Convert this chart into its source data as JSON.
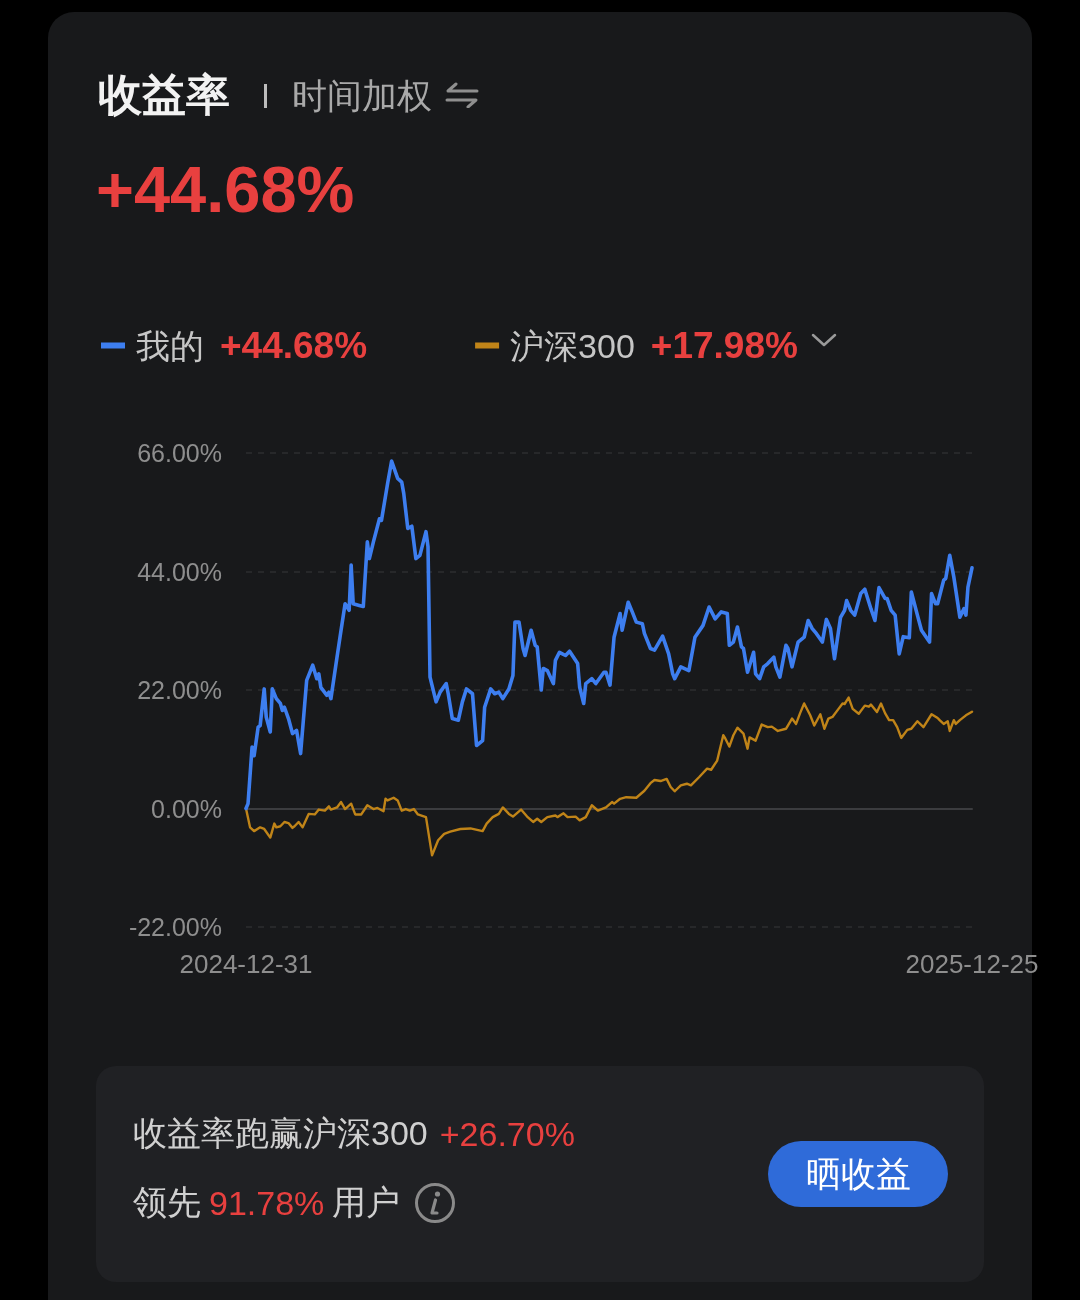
{
  "chart_data": {
    "type": "line",
    "title": "收益率",
    "subtitle": "时间加权",
    "annotations": [
      "+44.68%",
      "+44.68%",
      "+17.98%",
      "收益率跑赢沪深300",
      "+26.70%",
      "领先",
      "91.78%",
      "用户",
      "晒收益"
    ],
    "xlim": [
      "2024-12-31",
      "2025-12-25"
    ],
    "xticks": [
      "2024-12-31",
      "2025-12-25"
    ],
    "ylim": [
      -22,
      66
    ],
    "yticks": [
      {
        "value": -22,
        "label": "-22.00%"
      },
      {
        "value": 0,
        "label": "0.00%"
      },
      {
        "value": 22,
        "label": "22.00%"
      },
      {
        "value": 44,
        "label": "44.00%"
      },
      {
        "value": 66,
        "label": "66.00%"
      }
    ],
    "grid": "y",
    "legend": "top left",
    "marker": "none",
    "line_style": "solid",
    "series": [
      {
        "name": "我的",
        "color": "#3d7ef0",
        "x": [
          "2024-12-31",
          "2025-01-01",
          "2025-01-03",
          "2025-01-04",
          "2025-01-06",
          "2025-01-07",
          "2025-01-09",
          "2025-01-10",
          "2025-01-12",
          "2025-01-13",
          "2025-01-15",
          "2025-01-17",
          "2025-01-18",
          "2025-01-19",
          "2025-01-21",
          "2025-01-23",
          "2025-01-25",
          "2025-01-27",
          "2025-01-30",
          "2025-02-02",
          "2025-02-04",
          "2025-02-05",
          "2025-02-06",
          "2025-02-09",
          "2025-02-10",
          "2025-02-11",
          "2025-02-14",
          "2025-02-16",
          "2025-02-18",
          "2025-02-20",
          "2025-02-21",
          "2025-02-22",
          "2025-02-25",
          "2025-02-27",
          "2025-03-01",
          "2025-03-02",
          "2025-03-04",
          "2025-03-07",
          "2025-03-08",
          "2025-03-11",
          "2025-03-13",
          "2025-03-16",
          "2025-03-18",
          "2025-03-19",
          "2025-03-21",
          "2025-03-23",
          "2025-03-25",
          "2025-03-27",
          "2025-03-30",
          "2025-03-31",
          "2025-04-01",
          "2025-04-04",
          "2025-04-06",
          "2025-04-09",
          "2025-04-10",
          "2025-04-12",
          "2025-04-15",
          "2025-04-17",
          "2025-04-19",
          "2025-04-22",
          "2025-04-24",
          "2025-04-27",
          "2025-04-28",
          "2025-05-01",
          "2025-05-03",
          "2025-05-05",
          "2025-05-07",
          "2025-05-10",
          "2025-05-12",
          "2025-05-13",
          "2025-05-15",
          "2025-05-17",
          "2025-05-18",
          "2025-05-21",
          "2025-05-23",
          "2025-05-24",
          "2025-05-26",
          "2025-05-27",
          "2025-05-29",
          "2025-06-01",
          "2025-06-02",
          "2025-06-04",
          "2025-06-07",
          "2025-06-09",
          "2025-06-13",
          "2025-06-14",
          "2025-06-16",
          "2025-06-17",
          "2025-06-20",
          "2025-06-22",
          "2025-06-26",
          "2025-06-27",
          "2025-06-29",
          "2025-07-01",
          "2025-07-04",
          "2025-07-05",
          "2025-07-08",
          "2025-07-10",
          "2025-07-12",
          "2025-07-15",
          "2025-07-16",
          "2025-07-19",
          "2025-07-21",
          "2025-07-25",
          "2025-07-28",
          "2025-07-30",
          "2025-07-31",
          "2025-08-03",
          "2025-08-07",
          "2025-08-10",
          "2025-08-14",
          "2025-08-17",
          "2025-08-20",
          "2025-08-23",
          "2025-08-26",
          "2025-08-27",
          "2025-08-29",
          "2025-08-31",
          "2025-09-02",
          "2025-09-03",
          "2025-09-05",
          "2025-09-08",
          "2025-09-09",
          "2025-09-11",
          "2025-09-13",
          "2025-09-15",
          "2025-09-18",
          "2025-09-19",
          "2025-09-21",
          "2025-09-24",
          "2025-09-25",
          "2025-09-27",
          "2025-09-30",
          "2025-10-03",
          "2025-10-05",
          "2025-10-07",
          "2025-10-09",
          "2025-10-12",
          "2025-10-14",
          "2025-10-16",
          "2025-10-18",
          "2025-10-21",
          "2025-10-23",
          "2025-10-24",
          "2025-10-26",
          "2025-10-28",
          "2025-10-31",
          "2025-11-02",
          "2025-11-05",
          "2025-11-07",
          "2025-11-09",
          "2025-11-12",
          "2025-11-13",
          "2025-11-15",
          "2025-11-17",
          "2025-11-19",
          "2025-11-21",
          "2025-11-24",
          "2025-11-25",
          "2025-11-28",
          "2025-11-30",
          "2025-12-04",
          "2025-12-05",
          "2025-12-07",
          "2025-12-08",
          "2025-12-11",
          "2025-12-12",
          "2025-12-14",
          "2025-12-16",
          "2025-12-19",
          "2025-12-21",
          "2025-12-22",
          "2025-12-23",
          "2025-12-25"
        ],
        "values": [
          0,
          0.9,
          11.4,
          9.8,
          15.1,
          15.4,
          22.2,
          17.0,
          14.2,
          22.2,
          20.4,
          19.5,
          18.2,
          18.8,
          16.7,
          13.9,
          14.5,
          10.2,
          23.8,
          26.6,
          24.1,
          25.0,
          22.5,
          21.0,
          21.6,
          20.4,
          28.1,
          33.1,
          38.0,
          36.8,
          45.2,
          38.0,
          37.7,
          37.5,
          49.5,
          46.4,
          49.5,
          53.8,
          53.5,
          60.3,
          64.5,
          61.3,
          60.6,
          58.5,
          52.0,
          52.4,
          46.4,
          47.0,
          51.4,
          48.6,
          24.4,
          19.8,
          21.6,
          23.2,
          21.3,
          16.7,
          16.4,
          19.8,
          22.2,
          21.3,
          11.7,
          12.6,
          18.8,
          22.2,
          21.3,
          21.6,
          20.4,
          22.2,
          24.7,
          34.6,
          34.6,
          29.7,
          28.4,
          33.1,
          30.3,
          30.0,
          22.0,
          26.0,
          25.6,
          23.2,
          27.5,
          29.0,
          28.4,
          29.2,
          26.9,
          22.5,
          19.5,
          23.2,
          24.1,
          23.2,
          25.3,
          25.3,
          22.9,
          31.8,
          36.2,
          33.1,
          38.3,
          36.5,
          34.6,
          34.3,
          32.5,
          29.7,
          29.4,
          32.0,
          28.7,
          25.0,
          24.1,
          26.3,
          25.6,
          31.8,
          34.0,
          37.4,
          35.2,
          36.5,
          36.2,
          30.3,
          30.9,
          33.7,
          30.0,
          29.7,
          25.3,
          29.0,
          25.0,
          24.1,
          26.3,
          26.9,
          28.1,
          26.3,
          24.4,
          30.3,
          29.7,
          26.3,
          30.9,
          31.8,
          34.9,
          33.4,
          32.5,
          30.9,
          35.1,
          33.4,
          27.8,
          35.5,
          36.8,
          38.6,
          36.8,
          35.9,
          39.9,
          40.7,
          37.1,
          34.9,
          41.0,
          39.0,
          39.0,
          36.8,
          35.9,
          28.7,
          31.9,
          31.7,
          40.2,
          35.9,
          33.1,
          30.9,
          39.9,
          38.0,
          38.0,
          42.4,
          42.7,
          47.0,
          43.0,
          35.5,
          37.1,
          35.9,
          41.1,
          44.68
        ]
      },
      {
        "name": "沪深300",
        "color": "#c08418",
        "x": [
          "2024-12-31",
          "2025-01-02",
          "2025-01-04",
          "2025-01-07",
          "2025-01-09",
          "2025-01-12",
          "2025-01-14",
          "2025-01-15",
          "2025-01-17",
          "2025-01-19",
          "2025-01-21",
          "2025-01-23",
          "2025-01-24",
          "2025-01-26",
          "2025-01-28",
          "2025-01-31",
          "2025-02-03",
          "2025-02-05",
          "2025-02-08",
          "2025-02-10",
          "2025-02-11",
          "2025-02-14",
          "2025-02-16",
          "2025-02-18",
          "2025-02-21",
          "2025-02-23",
          "2025-02-26",
          "2025-03-01",
          "2025-03-04",
          "2025-03-06",
          "2025-03-09",
          "2025-03-10",
          "2025-03-11",
          "2025-03-14",
          "2025-03-16",
          "2025-03-18",
          "2025-03-20",
          "2025-03-22",
          "2025-03-24",
          "2025-03-26",
          "2025-03-30",
          "2025-04-02",
          "2025-04-05",
          "2025-04-08",
          "2025-04-11",
          "2025-04-16",
          "2025-04-21",
          "2025-04-27",
          "2025-04-29",
          "2025-05-02",
          "2025-05-05",
          "2025-05-07",
          "2025-05-10",
          "2025-05-12",
          "2025-05-16",
          "2025-05-19",
          "2025-05-22",
          "2025-05-24",
          "2025-05-26",
          "2025-05-29",
          "2025-06-02",
          "2025-06-03",
          "2025-06-06",
          "2025-06-08",
          "2025-06-12",
          "2025-06-14",
          "2025-06-17",
          "2025-06-20",
          "2025-06-23",
          "2025-06-27",
          "2025-06-30",
          "2025-07-01",
          "2025-07-04",
          "2025-07-07",
          "2025-07-12",
          "2025-07-16",
          "2025-07-19",
          "2025-07-21",
          "2025-07-24",
          "2025-07-27",
          "2025-07-29",
          "2025-07-31",
          "2025-08-03",
          "2025-08-06",
          "2025-08-08",
          "2025-08-12",
          "2025-08-16",
          "2025-08-18",
          "2025-08-21",
          "2025-08-24",
          "2025-08-25",
          "2025-08-27",
          "2025-08-29",
          "2025-08-31",
          "2025-09-03",
          "2025-09-05",
          "2025-09-06",
          "2025-09-09",
          "2025-09-12",
          "2025-09-15",
          "2025-09-17",
          "2025-09-20",
          "2025-09-24",
          "2025-09-27",
          "2025-09-29",
          "2025-10-01",
          "2025-10-03",
          "2025-10-06",
          "2025-10-08",
          "2025-10-11",
          "2025-10-13",
          "2025-10-15",
          "2025-10-17",
          "2025-10-20",
          "2025-10-22",
          "2025-10-23",
          "2025-10-25",
          "2025-10-27",
          "2025-10-30",
          "2025-11-02",
          "2025-11-04",
          "2025-11-05",
          "2025-11-08",
          "2025-11-10",
          "2025-11-12",
          "2025-11-14",
          "2025-11-16",
          "2025-11-18",
          "2025-11-20",
          "2025-11-23",
          "2025-11-25",
          "2025-11-28",
          "2025-12-01",
          "2025-12-05",
          "2025-12-08",
          "2025-12-09",
          "2025-12-11",
          "2025-12-13",
          "2025-12-14",
          "2025-12-16",
          "2025-12-17",
          "2025-12-19",
          "2025-12-22",
          "2025-12-25"
        ],
        "values": [
          0,
          -3.5,
          -4.2,
          -3.5,
          -3.8,
          -5.4,
          -2.8,
          -3.5,
          -3.3,
          -2.5,
          -2.7,
          -3.6,
          -3.3,
          -2.5,
          -3.5,
          -1.0,
          -1.1,
          -0.2,
          -0.4,
          0.4,
          -0.2,
          0.2,
          1.2,
          -0.1,
          0.9,
          -1.1,
          -1.1,
          0.6,
          -0.1,
          0.1,
          -0.5,
          1.8,
          1.5,
          2.0,
          1.5,
          -0.4,
          -0.1,
          -0.4,
          -0.1,
          -1.1,
          -1.6,
          -8.7,
          -5.9,
          -4.7,
          -4.3,
          -3.8,
          -3.7,
          -4.2,
          -2.8,
          -1.6,
          -1.0,
          0.2,
          -1.0,
          -1.5,
          -0.2,
          -1.5,
          -2.5,
          -1.9,
          -2.5,
          -1.6,
          -1.3,
          -1.6,
          -0.9,
          -1.6,
          -1.5,
          -2.2,
          -1.6,
          0.6,
          -0.4,
          0.2,
          1.2,
          0.9,
          1.8,
          2.1,
          2.0,
          3.3,
          4.7,
          5.3,
          5.1,
          5.5,
          4.0,
          3.2,
          4.3,
          4.6,
          4.3,
          5.8,
          7.4,
          7.2,
          8.9,
          13.6,
          13.0,
          11.5,
          13.6,
          15.0,
          13.9,
          11.1,
          13.2,
          12.6,
          15.6,
          15.1,
          15.2,
          14.4,
          14.8,
          16.7,
          15.7,
          17.7,
          19.5,
          17.3,
          15.4,
          17.5,
          14.8,
          16.7,
          17.0,
          18.5,
          19.5,
          19.4,
          20.6,
          18.5,
          17.6,
          19.1,
          18.9,
          19.3,
          17.9,
          19.5,
          17.7,
          16.4,
          16.4,
          15.1,
          13.1,
          14.6,
          14.8,
          16.2,
          15.1,
          17.5,
          16.8,
          16.4,
          15.7,
          16.2,
          14.4,
          16.4,
          15.7,
          16.4,
          17.3,
          17.98
        ]
      }
    ]
  }
}
